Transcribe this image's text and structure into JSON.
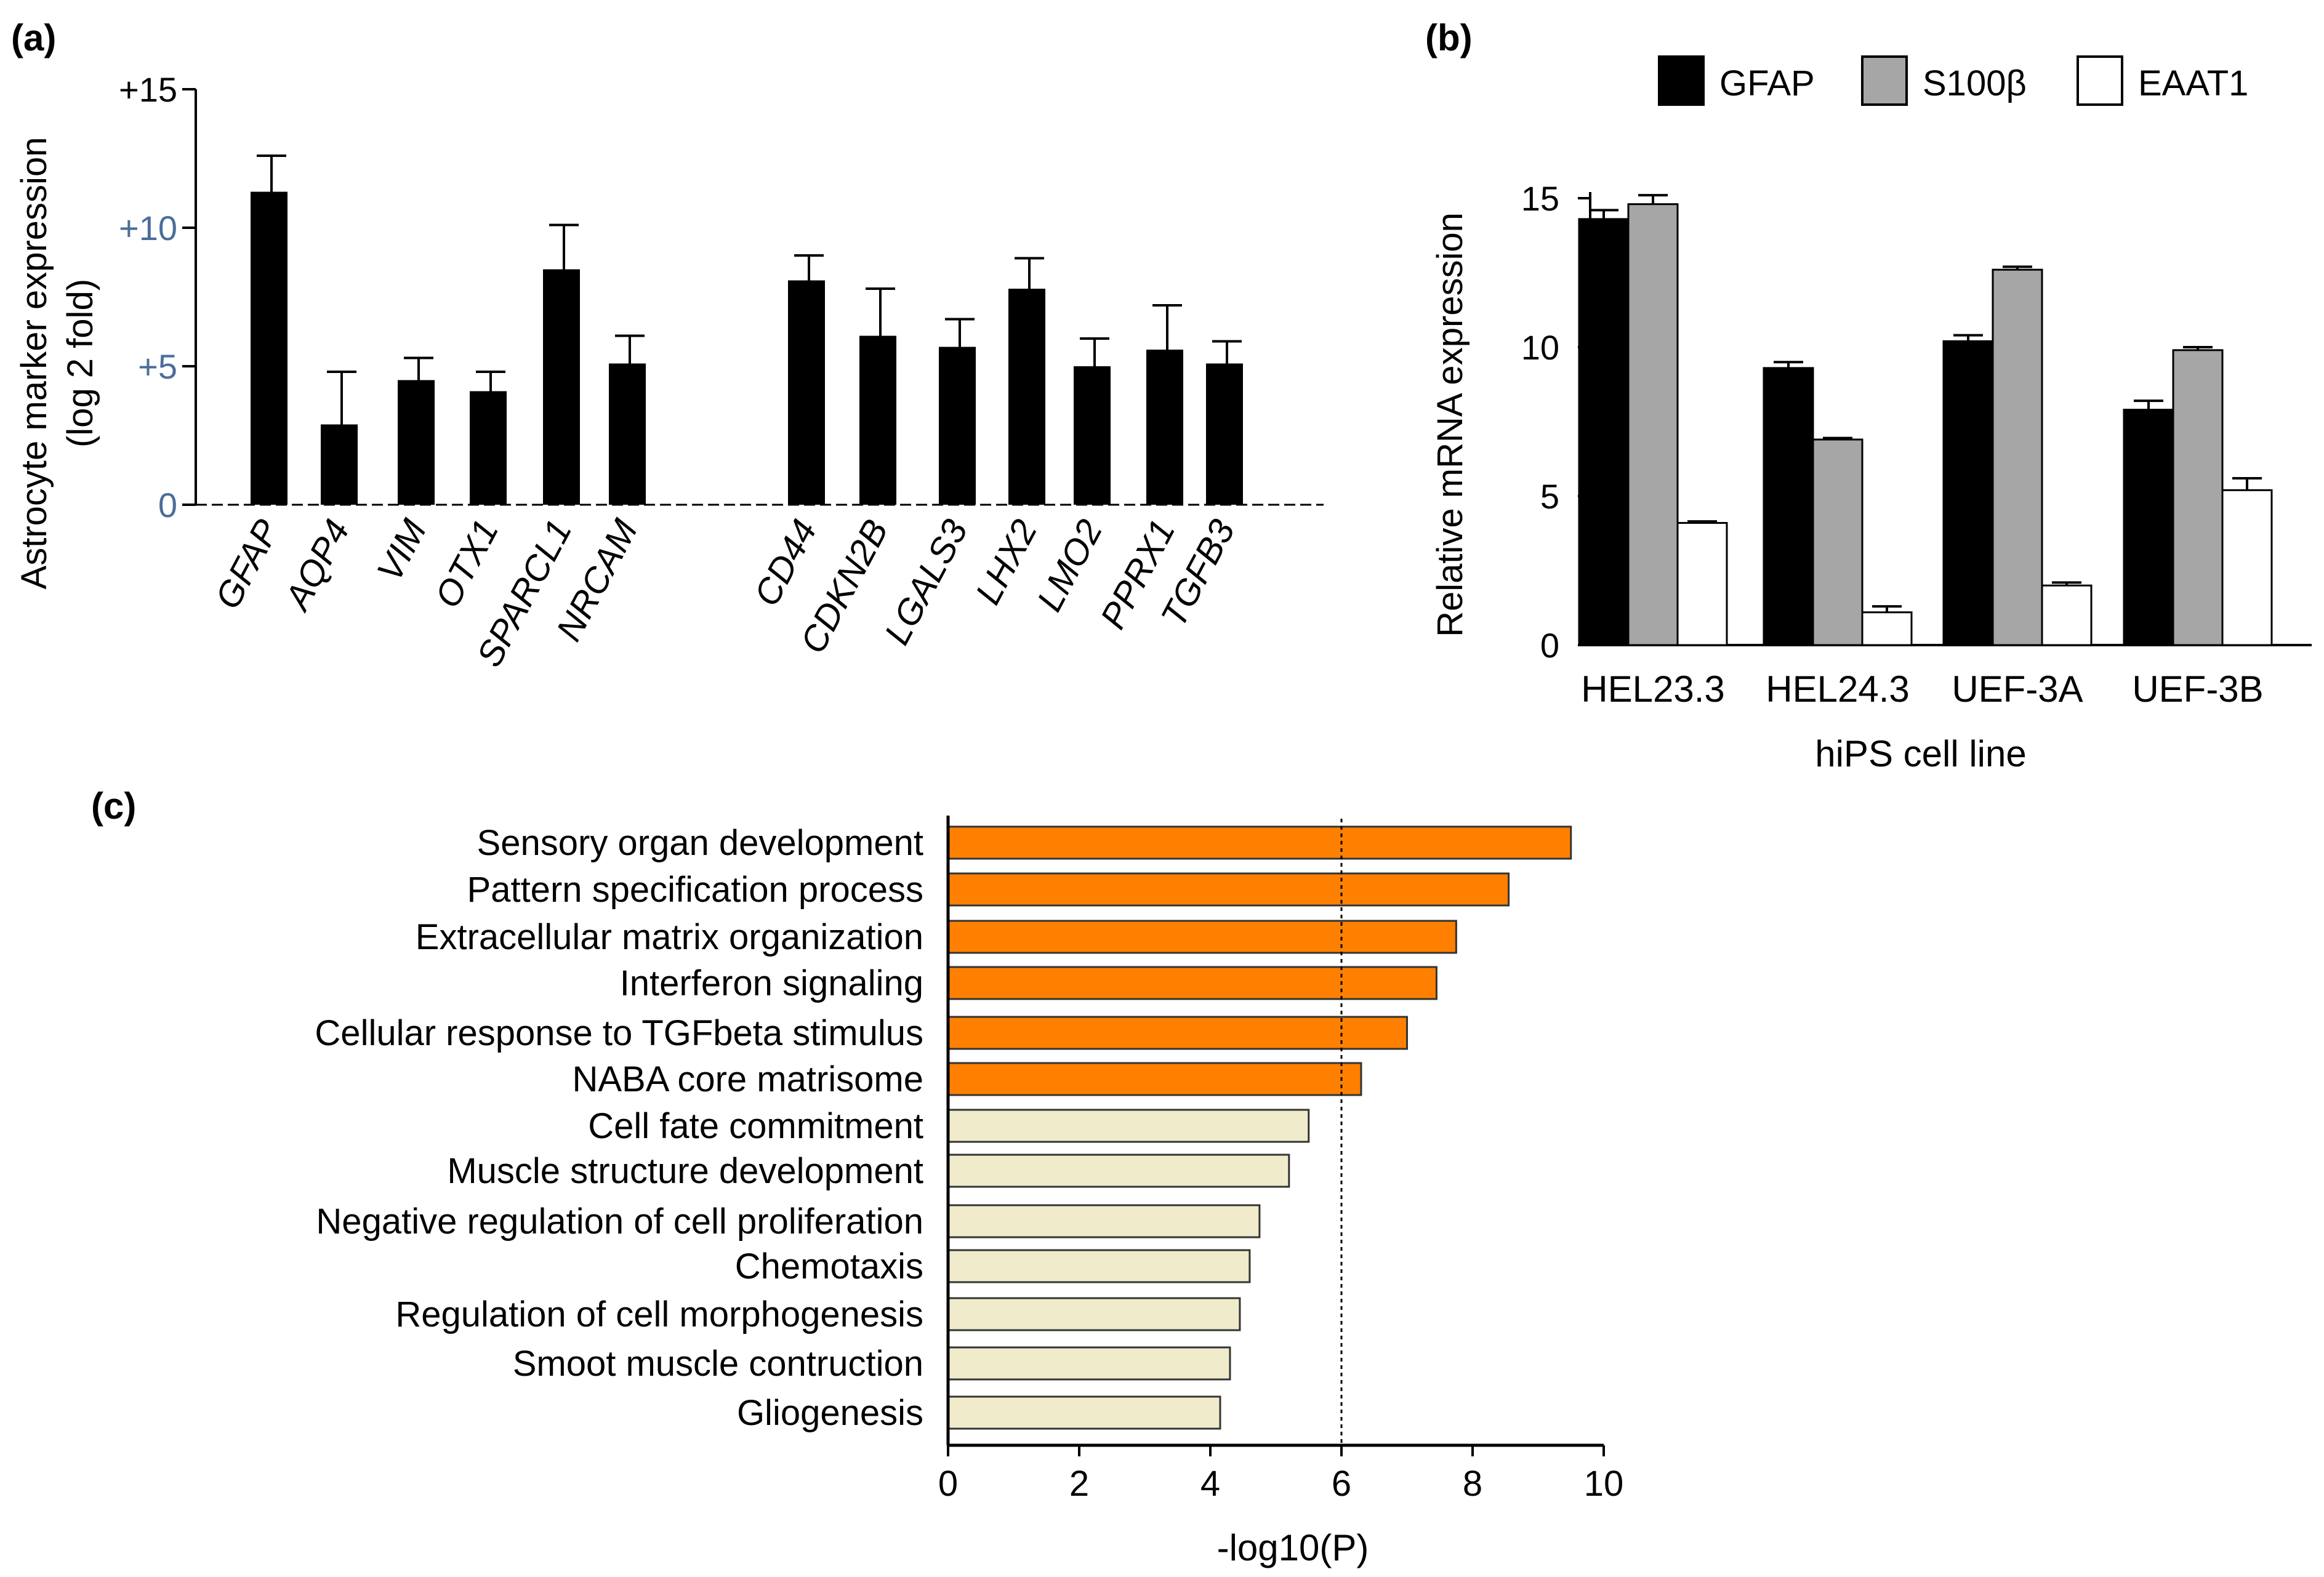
{
  "panels": {
    "a": {
      "label": "(a)"
    },
    "b": {
      "label": "(b)"
    },
    "c": {
      "label": "(c)"
    }
  },
  "chart_data": [
    {
      "id": "a",
      "type": "bar",
      "title": "",
      "ylabel_line1": "Astrocyte marker expression",
      "ylabel_line2": "(log 2 fold)",
      "xlabel": "",
      "ylim": [
        0,
        15
      ],
      "yticks": [
        0,
        5,
        10,
        15
      ],
      "ytick_labels": [
        "0",
        "+5",
        "+10",
        "+15"
      ],
      "ytick_colors": [
        "#4a6e9a",
        "#4a6e9a",
        "#4a6e9a",
        "#000000"
      ],
      "group1": [
        "GFAP",
        "AQP4",
        "VIM",
        "OTX1",
        "SPARCL1",
        "NRCAM"
      ],
      "group2": [
        "CD44",
        "CDKN2B",
        "LGALS3",
        "LHX2",
        "LMO2",
        "PPRX1",
        "TGFB3"
      ],
      "categories": [
        "GFAP",
        "AQP4",
        "VIM",
        "OTX1",
        "SPARCL1",
        "NRCAM",
        "CD44",
        "CDKN2B",
        "LGALS3",
        "LHX2",
        "LMO2",
        "PPRX1",
        "TGFB3"
      ],
      "values": [
        11.3,
        2.9,
        4.5,
        4.1,
        8.5,
        5.1,
        8.1,
        6.1,
        5.7,
        7.8,
        5.0,
        5.6,
        5.1
      ],
      "errors": [
        1.3,
        1.9,
        0.8,
        0.7,
        1.6,
        1.0,
        0.9,
        1.7,
        1.0,
        1.1,
        1.0,
        1.6,
        0.8
      ],
      "bar_color": "#000000"
    },
    {
      "id": "b",
      "type": "bar",
      "title": "",
      "ylabel": "Relative mRNA expression",
      "xlabel": "hiPS cell line",
      "ylim": [
        0,
        15
      ],
      "yticks": [
        0,
        5,
        10,
        15
      ],
      "categories": [
        "HEL23.3",
        "HEL24.3",
        "UEF-3A",
        "UEF-3B"
      ],
      "series": [
        {
          "name": "GFAP",
          "color": "#000000",
          "values": [
            14.3,
            9.3,
            10.2,
            7.9
          ],
          "errors": [
            0.3,
            0.2,
            0.2,
            0.3
          ]
        },
        {
          "name": "S100β",
          "color": "#a6a6a6",
          "values": [
            14.8,
            6.9,
            12.6,
            9.9
          ],
          "errors": [
            0.3,
            0.05,
            0.1,
            0.1
          ]
        },
        {
          "name": "EAAT1",
          "color": "#ffffff",
          "values": [
            4.1,
            1.1,
            2.0,
            5.2
          ],
          "errors": [
            0.05,
            0.2,
            0.1,
            0.4
          ]
        }
      ],
      "legend_position": "top"
    },
    {
      "id": "c",
      "type": "bar",
      "orientation": "horizontal",
      "title": "",
      "xlabel": "-log10(P)",
      "ylabel": "",
      "xlim": [
        0,
        10
      ],
      "xticks": [
        0,
        2,
        4,
        6,
        8,
        10
      ],
      "threshold": 6,
      "categories": [
        "Sensory organ development",
        "Pattern specification process",
        "Extracellular matrix organization",
        "Interferon signaling",
        "Cellular response to TGFbeta stimulus",
        "NABA core matrisome",
        "Cell fate commitment",
        "Muscle structure development",
        "Negative regulation of cell proliferation",
        "Chemotaxis",
        "Regulation of cell morphogenesis",
        "Smoot muscle contruction",
        "Gliogenesis"
      ],
      "values": [
        9.5,
        8.55,
        7.75,
        7.45,
        7.0,
        6.3,
        5.5,
        5.2,
        4.75,
        4.6,
        4.45,
        4.3,
        4.15
      ],
      "significant_color": "#ff8000",
      "nonsignificant_color": "#f0eccb"
    }
  ]
}
